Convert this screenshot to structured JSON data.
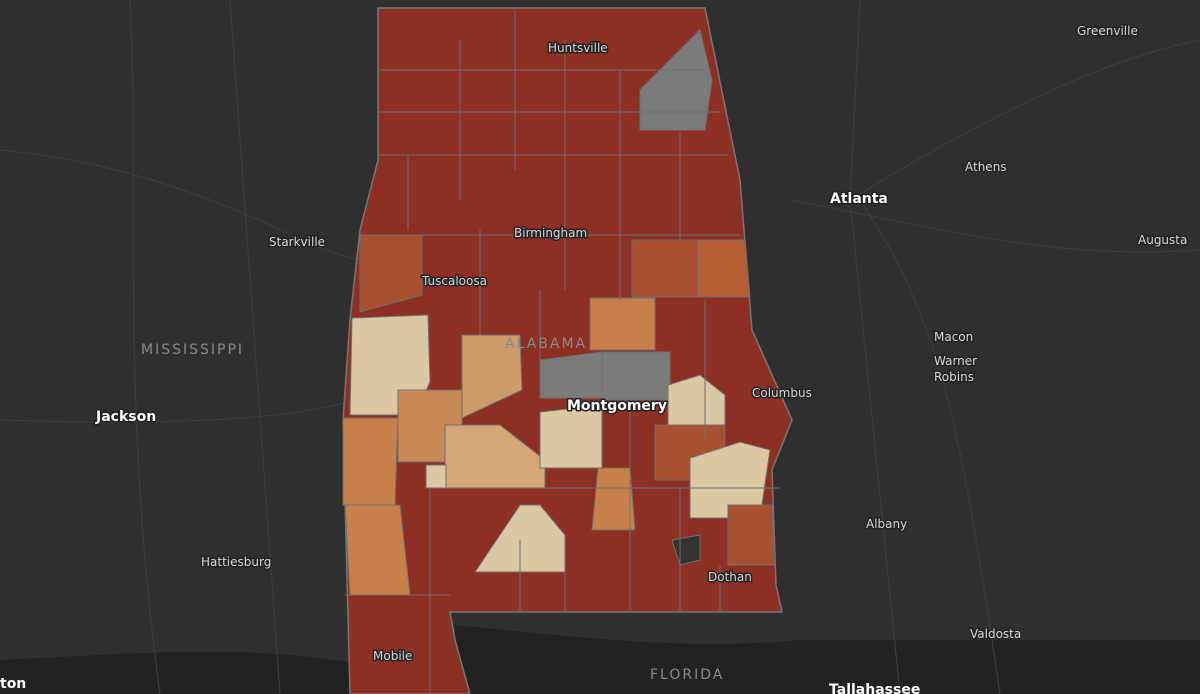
{
  "map": {
    "labels": {
      "huntsville": "Huntsville",
      "birmingham": "Birmingham",
      "tuscaloosa": "Tuscaloosa",
      "alabama": "ALABAMA",
      "montgomery": "Montgomery",
      "columbus": "Columbus",
      "dothan": "Dothan",
      "mobile": "Mobile",
      "atlanta": "Atlanta",
      "athens": "Athens",
      "greenville": "Greenville",
      "augusta": "Augusta",
      "macon": "Macon",
      "warner_robins": "Warner\nRobins",
      "albany": "Albany",
      "valdosta": "Valdosta",
      "tallahassee": "Tallahassee",
      "florida": "FLORIDA",
      "mississippi": "MISSISSIPPI",
      "starkville": "Starkville",
      "jackson": "Jackson",
      "hattiesburg": "Hattiesburg",
      "ton": "ton"
    }
  }
}
